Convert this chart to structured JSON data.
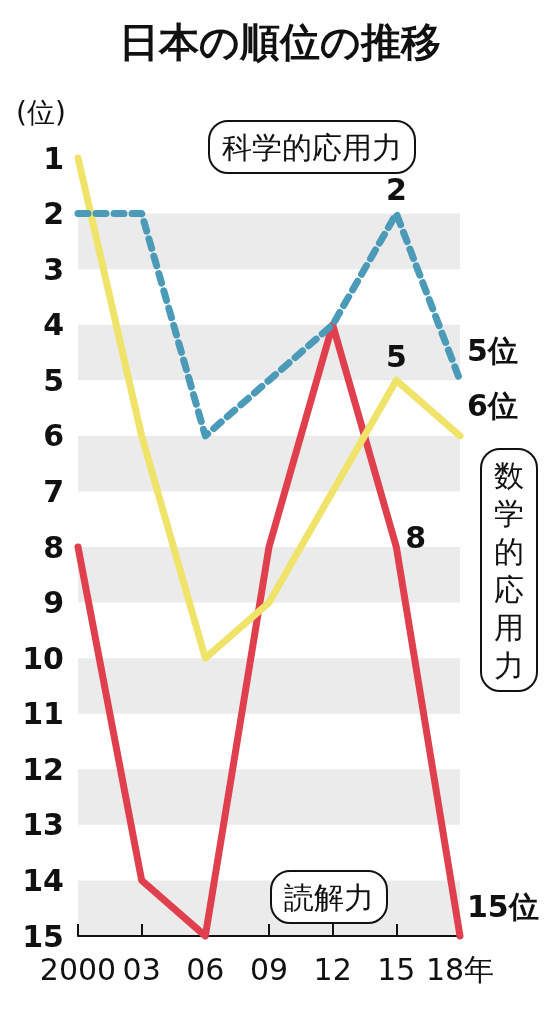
{
  "chart_data": {
    "type": "line",
    "title": "日本の順位の推移",
    "ylabel": "(位)",
    "categories": [
      "2000",
      "03",
      "06",
      "09",
      "12",
      "15",
      "18年"
    ],
    "ylim": [
      15,
      1
    ],
    "yticks": [
      1,
      2,
      3,
      4,
      5,
      6,
      7,
      8,
      9,
      10,
      11,
      12,
      13,
      14,
      15
    ],
    "legend": false,
    "marker": "none",
    "bands": [
      {
        "axis": "y",
        "from": 2,
        "to": 3,
        "color": "#ebebeb"
      },
      {
        "axis": "y",
        "from": 4,
        "to": 5,
        "color": "#ebebeb"
      },
      {
        "axis": "y",
        "from": 6,
        "to": 7,
        "color": "#ebebeb"
      },
      {
        "axis": "y",
        "from": 8,
        "to": 9,
        "color": "#ebebeb"
      },
      {
        "axis": "y",
        "from": 10,
        "to": 11,
        "color": "#ebebeb"
      },
      {
        "axis": "y",
        "from": 12,
        "to": 13,
        "color": "#ebebeb"
      },
      {
        "axis": "y",
        "from": 14,
        "to": 15,
        "color": "#ebebeb"
      }
    ],
    "series": [
      {
        "name": "科学的応用力",
        "color": "#4a9ab8",
        "line_style": "dashed",
        "values": [
          2,
          2,
          6,
          5,
          4,
          2,
          5
        ],
        "value_labels": [
          null,
          null,
          null,
          null,
          null,
          "2",
          "5位"
        ]
      },
      {
        "name": "数学的応用力",
        "color": "#f0e36a",
        "line_style": "solid",
        "values": [
          1,
          6,
          10,
          9,
          7,
          5,
          6
        ],
        "value_labels": [
          null,
          null,
          null,
          null,
          null,
          "5",
          "6位"
        ]
      },
      {
        "name": "読解力",
        "color": "#e0404e",
        "line_style": "solid",
        "values": [
          8,
          14,
          15,
          8,
          4,
          8,
          15
        ],
        "value_labels": [
          null,
          null,
          null,
          null,
          null,
          "8",
          "15位"
        ]
      }
    ]
  }
}
